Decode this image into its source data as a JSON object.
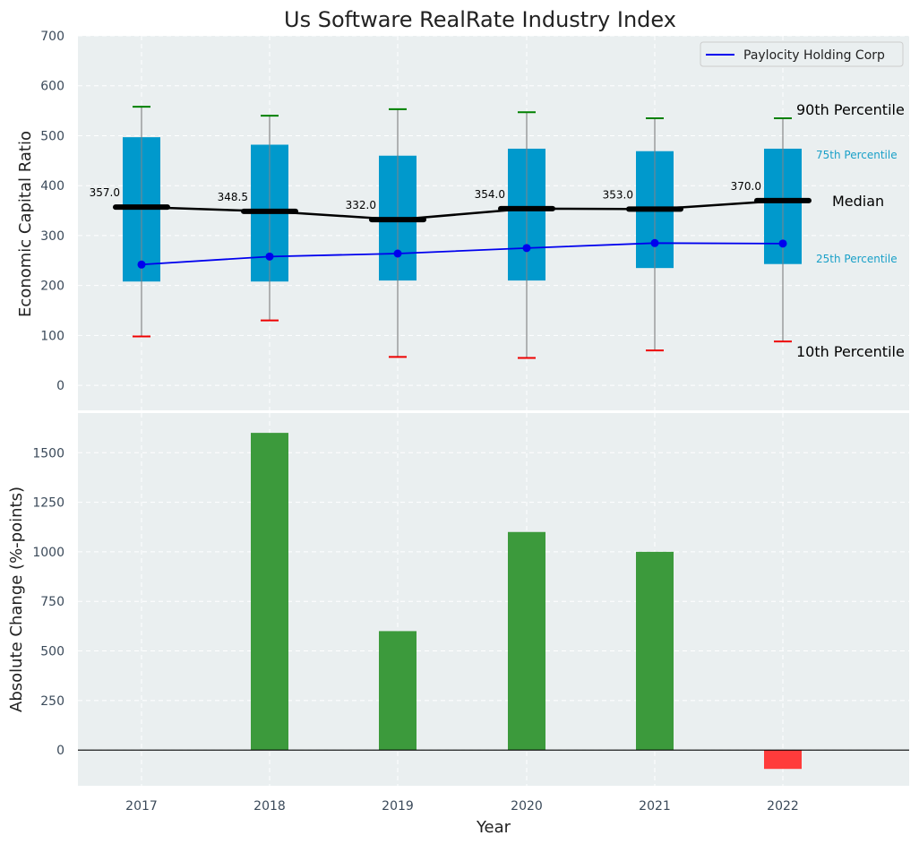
{
  "chart_data": [
    {
      "type": "box",
      "title": "Us Software RealRate Industry Index",
      "ylabel": "Economic Capital Ratio",
      "ylim": [
        -50,
        700
      ],
      "yticks": [
        0,
        100,
        200,
        300,
        400,
        500,
        600,
        700
      ],
      "categories": [
        "2017",
        "2018",
        "2019",
        "2020",
        "2021",
        "2022"
      ],
      "p10": [
        98,
        130,
        57,
        55,
        70,
        88
      ],
      "p25": [
        208,
        208,
        210,
        210,
        235,
        243
      ],
      "median": [
        357.0,
        348.5,
        332.0,
        354.0,
        353.0,
        370.0
      ],
      "p75": [
        497,
        482,
        460,
        474,
        469,
        474
      ],
      "p90": [
        558,
        540,
        553,
        547,
        535,
        535
      ],
      "median_labels": [
        "357.0",
        "348.5",
        "332.0",
        "354.0",
        "353.0",
        "370.0"
      ],
      "series": [
        {
          "name": "Paylocity Holding Corp",
          "values": [
            242,
            258,
            264,
            275,
            285,
            284
          ]
        }
      ],
      "legend_position": "top-right",
      "annotations": {
        "p90": "90th Percentile",
        "p75": "75th Percentile",
        "median": "Median",
        "p25": "25th Percentile",
        "p10": "10th Percentile"
      },
      "grid": true
    },
    {
      "type": "bar",
      "ylabel": "Absolute Change (%-points)",
      "xlabel": "Year",
      "categories": [
        "2017",
        "2018",
        "2019",
        "2020",
        "2021",
        "2022"
      ],
      "values": [
        null,
        1600,
        600,
        1100,
        1000,
        -95
      ],
      "ylim": [
        -180,
        1700
      ],
      "yticks": [
        0,
        250,
        500,
        750,
        1000,
        1250,
        1500
      ],
      "grid": true
    }
  ],
  "colors": {
    "panel_bg": "#eaeff0",
    "box": "#0099cc",
    "median": "#000000",
    "series": "#0000ee",
    "whisker_top": "#008000",
    "whisker_bottom": "#ee0000",
    "bar_positive": "#3c9a3c",
    "bar_negative": "#ff3b3b",
    "p_label": "#1aa0c8"
  }
}
